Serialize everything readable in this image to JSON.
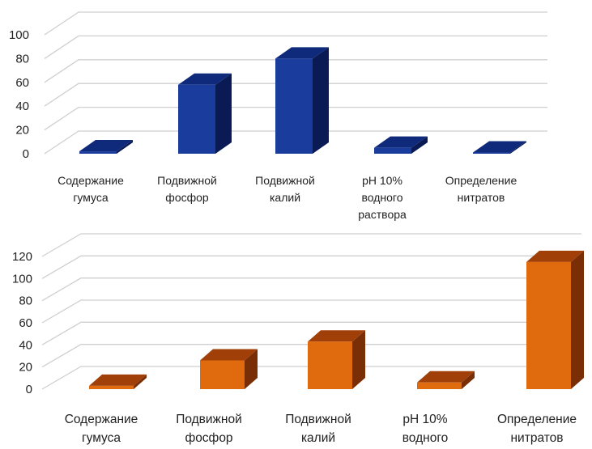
{
  "chart_data": [
    {
      "type": "bar",
      "style": "3d-column",
      "categories": [
        [
          "Содержание",
          "гумуса"
        ],
        [
          "Подвижной",
          "фосфор"
        ],
        [
          "Подвижной",
          "калий"
        ],
        [
          "pH 10%",
          "водного",
          "раствора"
        ],
        [
          "Определение",
          "нитратов"
        ]
      ],
      "values": [
        2,
        58,
        80,
        5,
        1
      ],
      "ylim": [
        0,
        100
      ],
      "yticks": [
        "0",
        "20",
        "40",
        "60",
        "80",
        "100"
      ],
      "grid": true,
      "title": "",
      "xlabel": "",
      "ylabel": "",
      "colors": {
        "front": "#1a3c9c",
        "side": "#0a1a55",
        "top": "#0f2a7a"
      }
    },
    {
      "type": "bar",
      "style": "3d-column",
      "categories": [
        [
          "Содержание",
          "гумуса"
        ],
        [
          "Подвижной",
          "фосфор"
        ],
        [
          "Подвижной",
          "калий"
        ],
        [
          "pH 10%",
          "водного"
        ],
        [
          "Определение",
          "нитратов"
        ]
      ],
      "values": [
        3,
        26,
        43,
        6,
        115
      ],
      "ylim": [
        0,
        120
      ],
      "yticks": [
        "0",
        "20",
        "40",
        "60",
        "80",
        "100",
        "120"
      ],
      "grid": true,
      "title": "",
      "xlabel": "",
      "ylabel": "",
      "colors": {
        "front": "#e06a0e",
        "side": "#7a2e05",
        "top": "#a04008"
      }
    }
  ]
}
